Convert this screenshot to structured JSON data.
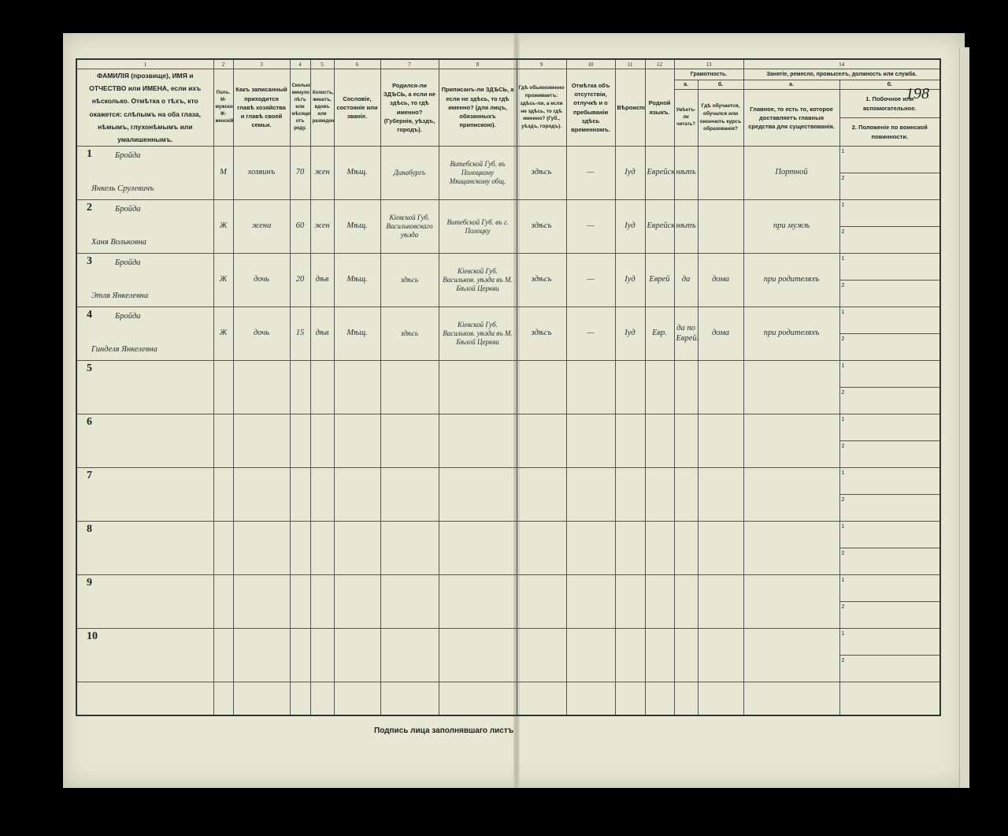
{
  "page_number": "198",
  "column_numbers": [
    "1",
    "2",
    "3",
    "4",
    "5",
    "6",
    "7",
    "8",
    "9",
    "10",
    "11",
    "12",
    "13",
    "14"
  ],
  "headers": {
    "c1": "ФАМИЛІЯ (прозвище), ИМЯ и ОТЧЕСТВО или ИМЕНА, если ихъ нѣсколько. Отмѣтка о тѣхъ, кто окажется: слѣпымъ на оба глаза, нѣмымъ, глухонѣмымъ или умалишеннымъ.",
    "c2": "Полъ. М-мужской. Ж-женскій.",
    "c3": "Какъ записанный приходится главѣ хозяйства и главѣ своей семьи.",
    "c4": "Сколько минуло лѣтъ или мѣсяцевъ отъ роду.",
    "c5": "Холостъ, женатъ, вдовъ или разведенъ.",
    "c6": "Сословіе, состояніе или званіе.",
    "c7": "Родился-ли ЗДѢСЬ, а если не здѣсь, то гдѣ именно? (Губернія, уѣздъ, городъ).",
    "c8": "Приписанъ-ли ЗДѢСЬ, а если не здѣсь, то гдѣ именно? (для лицъ, обязанныхъ припискою).",
    "c9": "Гдѣ обыкновенно проживаетъ: здѣсь-ли, а если не здѣсь, то гдѣ именно? (Губ., уѣздъ, городъ).",
    "c10": "Отмѣтка объ отсутствіи, отлучкѣ и о пребываніи здѣсь временномъ.",
    "c11": "Вѣроисповѣданіе.",
    "c12": "Родной языкъ.",
    "c13": "Грамотность.",
    "c13a_letter": "а.",
    "c13b_letter": "б.",
    "c13a": "Умѣетъ-ли читать?",
    "c13b": "Гдѣ обучается, обучался или окончилъ курсъ образованія?",
    "c14": "Занятіе, ремесло, промыселъ, должность или служба.",
    "c14a_letter": "а.",
    "c14b_letter": "б.",
    "c14a": "Главное, то есть то, которое доставляетъ главныя средства для существованія.",
    "c14b1": "1. Побочное или вспомогательное.",
    "c14b2": "2. Положеніе по воинской повинности."
  },
  "sub_labels": [
    "1",
    "2"
  ],
  "rows": [
    {
      "n": "1",
      "surname": "Бройда",
      "given": "Янкель Срулевичъ",
      "sex": "М",
      "relation": "хозяинъ",
      "age": "70",
      "marital": "жен",
      "estate": "Мѣщ.",
      "born": "Динабургъ",
      "registered": "Витебской Губ. въ Полоцкому Мѣщанскому общ.",
      "residence": "здѣсь",
      "absence": "—",
      "religion": "Іуд",
      "language": "Еврейск.",
      "reads": "нѣтъ",
      "school": "",
      "occupation": "Портной",
      "occ_side": "",
      "military": ""
    },
    {
      "n": "2",
      "surname": "Бройда",
      "given": "Ханя Вольковна",
      "sex": "Ж",
      "relation": "жена",
      "age": "60",
      "marital": "жен",
      "estate": "Мѣщ.",
      "born": "Кіевской Губ. Васильковскаго уѣзда",
      "registered": "Витебской Губ. въ г. Полоцку",
      "residence": "здѣсь",
      "absence": "—",
      "religion": "Іуд",
      "language": "Еврейск.",
      "reads": "нѣтъ",
      "school": "",
      "occupation": "при мужѣ",
      "occ_side": "",
      "military": ""
    },
    {
      "n": "3",
      "surname": "Бройда",
      "given": "Этля Янкелевна",
      "sex": "Ж",
      "relation": "дочь",
      "age": "20",
      "marital": "дѣв",
      "estate": "Мѣщ.",
      "born": "здѣсь",
      "registered": "Кіевской Губ. Васильков. уѣзда въ М. Бѣлой Церкви",
      "residence": "здѣсь",
      "absence": "—",
      "religion": "Іуд",
      "language": "Еврей",
      "reads": "да",
      "school": "дома",
      "occupation": "при родителяхъ",
      "occ_side": "",
      "military": ""
    },
    {
      "n": "4",
      "surname": "Бройда",
      "given": "Гинделя Янкелевна",
      "sex": "Ж",
      "relation": "дочь",
      "age": "15",
      "marital": "дѣв",
      "estate": "Мѣщ.",
      "born": "здѣсь",
      "registered": "Кіевской Губ. Васильков. уѣзда въ М. Бѣлой Церкви",
      "residence": "здѣсь",
      "absence": "—",
      "religion": "Іуд",
      "language": "Евр.",
      "reads": "да по Еврей.",
      "school": "дома",
      "occupation": "при родителяхъ",
      "occ_side": "",
      "military": ""
    },
    {
      "n": "5"
    },
    {
      "n": "6"
    },
    {
      "n": "7"
    },
    {
      "n": "8"
    },
    {
      "n": "9"
    },
    {
      "n": "10"
    }
  ],
  "footer": {
    "signature_label": "Подпись лица заполнявшаго листъ"
  }
}
